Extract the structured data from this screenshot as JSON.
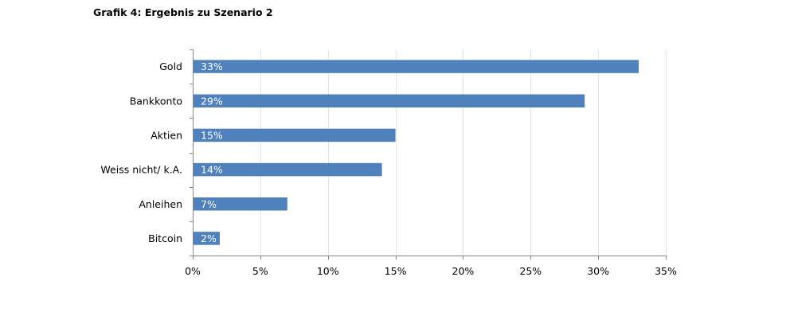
{
  "title": "Grafik 4: Ergebnis zu Szenario 2",
  "colors": {
    "bar": "#4f81bd",
    "gridline": "#dce6f1",
    "axis": "#868686",
    "data_label": "#ffffff"
  },
  "chart_data": {
    "type": "bar",
    "orientation": "horizontal",
    "title": "Grafik 4: Ergebnis zu Szenario 2",
    "categories": [
      "Gold",
      "Bankkonto",
      "Aktien",
      "Weiss nicht/ k.A.",
      "Anleihen",
      "Bitcoin"
    ],
    "values": [
      33,
      29,
      15,
      14,
      7,
      2
    ],
    "data_labels": [
      "33%",
      "29%",
      "15%",
      "14%",
      "7%",
      "2%"
    ],
    "xlim": [
      0,
      35
    ],
    "xticks": [
      0,
      5,
      10,
      15,
      20,
      25,
      30,
      35
    ],
    "xtick_labels": [
      "0%",
      "5%",
      "10%",
      "15%",
      "20%",
      "25%",
      "30%",
      "35%"
    ],
    "xlabel": "",
    "ylabel": "",
    "grid": true,
    "legend": "none"
  }
}
